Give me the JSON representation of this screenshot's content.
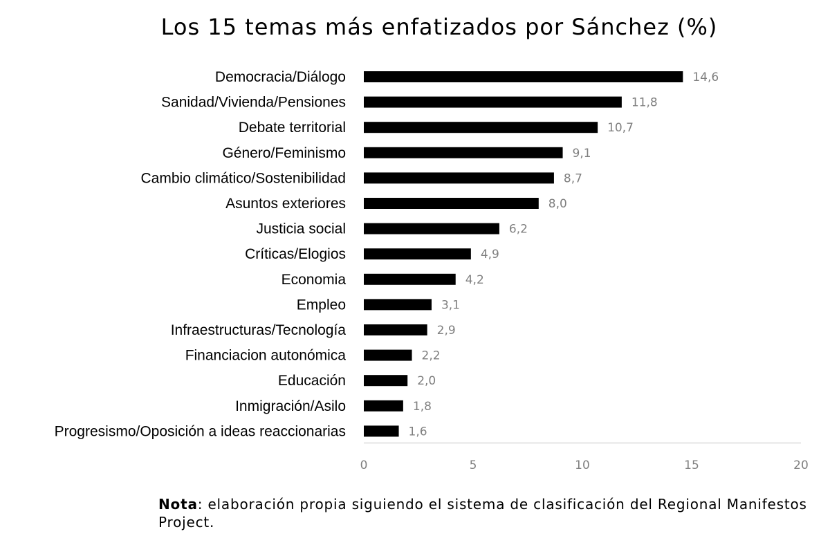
{
  "chart_data": {
    "type": "bar",
    "orientation": "horizontal",
    "title": "Los 15 temas más enfatizados por Sánchez (%)",
    "categories": [
      "Democracia/Diálogo",
      "Sanidad/Vivienda/Pensiones",
      "Debate territorial",
      "Género/Feminismo",
      "Cambio climático/Sostenibilidad",
      "Asuntos exteriores",
      "Justicia social",
      "Críticas/Elogios",
      "Economia",
      "Empleo",
      "Infraestructuras/Tecnología",
      "Financiacion autonómica",
      "Educación",
      "Inmigración/Asilo",
      "Progresismo/Oposición a ideas reaccionarias"
    ],
    "values": [
      14.6,
      11.8,
      10.7,
      9.1,
      8.7,
      8.0,
      6.2,
      4.9,
      4.2,
      3.1,
      2.9,
      2.2,
      2.0,
      1.8,
      1.6
    ],
    "value_labels": [
      "14,6",
      "11,8",
      "10,7",
      "9,1",
      "8,7",
      "8,0",
      "6,2",
      "4,9",
      "4,2",
      "3,1",
      "2,9",
      "2,2",
      "2,0",
      "1,8",
      "1,6"
    ],
    "xlim": [
      0,
      20
    ],
    "x_ticks": [
      0,
      5,
      10,
      15,
      20
    ],
    "xlabel": "",
    "ylabel": "",
    "grid": false,
    "legend": "none",
    "bar_color": "#000000",
    "value_label_color": "#7f7f7f"
  },
  "note": {
    "label": "Nota",
    "text": ": elaboración propia siguiendo el sistema de clasificación del Regional Manifestos Project."
  }
}
